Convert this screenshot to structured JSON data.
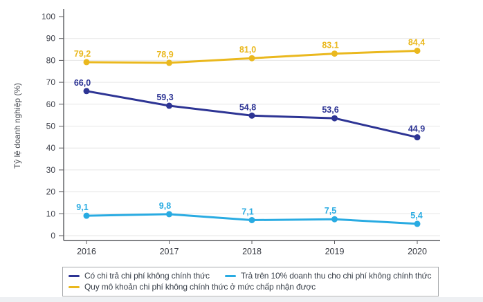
{
  "chart_data": {
    "type": "line",
    "title": "",
    "xlabel": "",
    "ylabel": "Tỷ lệ doanh nghiệp (%)",
    "categories": [
      "2016",
      "2017",
      "2018",
      "2019",
      "2020"
    ],
    "ylim": [
      0,
      100
    ],
    "yticks": [
      0,
      10,
      20,
      30,
      40,
      50,
      60,
      70,
      80,
      90,
      100
    ],
    "grid": "horizontal gridlines at 0-90, none at 100",
    "legend_position": "bottom-boxed",
    "series": [
      {
        "name": "Có chi trả chi phí không chính thức",
        "color": "#2d3494",
        "values": [
          66.0,
          59.3,
          54.8,
          53.6,
          44.9
        ],
        "labels": [
          "66,0",
          "59,3",
          "54,8",
          "53,6",
          "44,9"
        ]
      },
      {
        "name": "Trả trên 10% doanh thu cho chi phí không chính thức",
        "color": "#29abe2",
        "values": [
          9.1,
          9.8,
          7.1,
          7.5,
          5.4
        ],
        "labels": [
          "9,1",
          "9,8",
          "7,1",
          "7,5",
          "5,4"
        ]
      },
      {
        "name": "Quy mô khoản chi phí không chính thức ở mức chấp nhận được",
        "color": "#eab81e",
        "values": [
          79.2,
          78.9,
          81.0,
          83.1,
          84.4
        ],
        "labels": [
          "79,2",
          "78,9",
          "81,0",
          "83.1",
          "84,4"
        ]
      }
    ],
    "legend_rows": [
      [
        0,
        1
      ],
      [
        2
      ]
    ],
    "colors": {
      "gridline": "#e6e6e6",
      "axis": "#595a5e",
      "tick_label": "#3c3f49",
      "category_label": "#33363e",
      "bottom_strip": "#eef0f3"
    }
  }
}
